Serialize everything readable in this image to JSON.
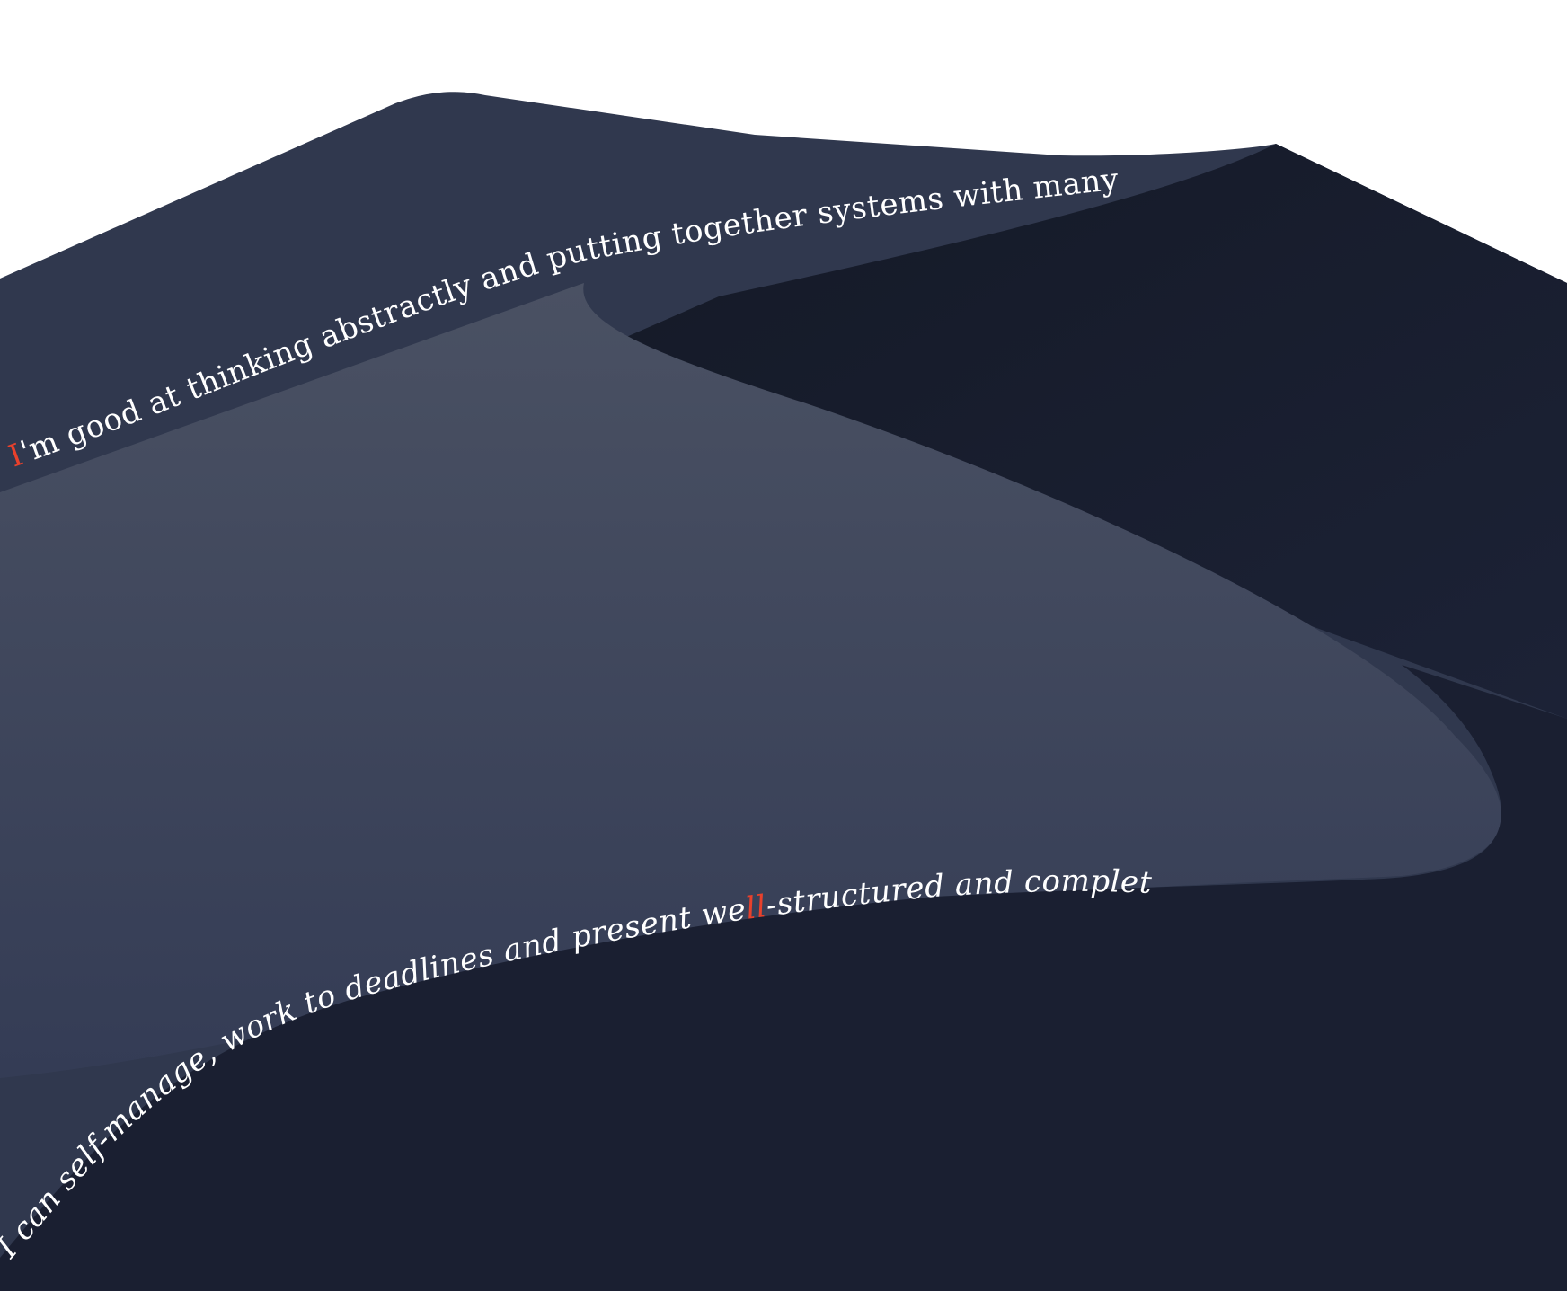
{
  "colors": {
    "background": "#ffffff",
    "back_dune": "#30384e",
    "shadow_dune": "#161b2b",
    "lit_dune_top": "#4a5163",
    "lit_dune_bottom": "#343c55",
    "front_dune": "#1a1f31",
    "text": "#ffffff",
    "accent": "#e8412c"
  },
  "line1": {
    "accent_prefix": "I",
    "rest": "'m good at thinking abstractly and putting together systems with many moving parts."
  },
  "line2": {
    "part1": "I can self-manage, work to deadlines and present we",
    "accent_mid": "ll",
    "part2": "-structured and complete deliverables."
  }
}
